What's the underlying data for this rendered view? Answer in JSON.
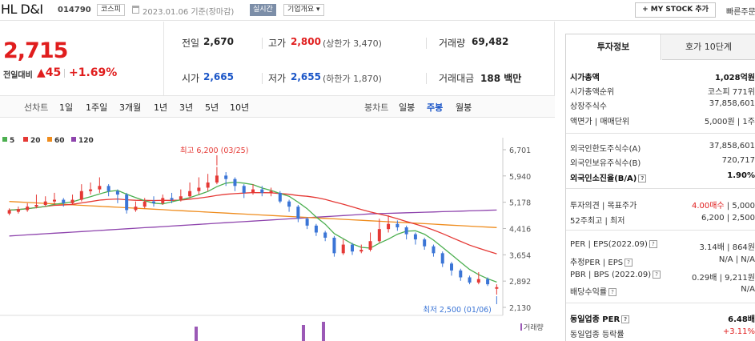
{
  "header": {
    "company_name": "HL D&I",
    "code": "014790",
    "market": "코스피",
    "date_text": "2023.01.06 기준(장마감)",
    "realtime_label": "실시간",
    "overview_label": "기업개요",
    "mystock_label": "+ MY STOCK 추가",
    "quick_label": "빠른주문"
  },
  "price": {
    "current": "2,715",
    "prev_label": "전일대비",
    "change": "▲45",
    "change_pct": "+1.69%"
  },
  "quotes": {
    "prev_close_label": "전일",
    "prev_close": "2,670",
    "open_label": "시가",
    "open": "2,665",
    "high_label": "고가",
    "high": "2,800",
    "upper_limit": "(상한가 3,470)",
    "low_label": "저가",
    "low": "2,655",
    "lower_limit": "(하한가 1,870)",
    "volume_label": "거래량",
    "volume": "69,482",
    "amount_label": "거래대금",
    "amount": "188 백만"
  },
  "tabs": {
    "line_label": "선차트",
    "line_periods": [
      "1일",
      "1주일",
      "3개월",
      "1년",
      "3년",
      "5년",
      "10년"
    ],
    "candle_label": "봉차트",
    "candle_periods": [
      "일봉",
      "주봉",
      "월봉"
    ],
    "active_candle": "주봉"
  },
  "chart_data": {
    "type": "candlestick",
    "legend": [
      {
        "name": "5",
        "color": "#4caf50"
      },
      {
        "name": "20",
        "color": "#e53935"
      },
      {
        "name": "60",
        "color": "#ef8c1d"
      },
      {
        "name": "120",
        "color": "#8e44ad"
      }
    ],
    "y_ticks": [
      "6,701",
      "5,940",
      "5,178",
      "4,416",
      "3,654",
      "2,892",
      "2,130"
    ],
    "ylim": [
      2130,
      6701
    ],
    "high_annotation": "최고 6,200 (03/25)",
    "low_annotation": "최저 2,500 (01/06)",
    "volume_label": "거래량",
    "colors": {
      "up": "#e53935",
      "down": "#3b75d6"
    }
  },
  "invest": {
    "tab_active": "투자정보",
    "tab_other": "호가 10단계",
    "rows": [
      {
        "label": "시가총액",
        "value": "1,028억원",
        "bold": true
      },
      {
        "label": "시가총액순위",
        "value": "코스피 771위"
      },
      {
        "label": "상장주식수",
        "value": "37,858,601"
      },
      {
        "label": "액면가 | 매매단위",
        "value": "5,000원 | 1주"
      },
      {
        "label": "외국인한도주식수(A)",
        "value": "37,858,601"
      },
      {
        "label": "외국인보유주식수(B)",
        "value": "720,717"
      },
      {
        "label": "외국인소진율(B/A)",
        "value": "1.90%",
        "bold": true
      },
      {
        "label": "투자의견 | 목표주가",
        "value_red": "4.00매수",
        "value": "| 5,000"
      },
      {
        "label": "52주최고 | 최저",
        "value": "6,200 | 2,500"
      },
      {
        "label": "PER | EPS(2022.09)",
        "value": "3.14배 | 864원"
      },
      {
        "label": "추정PER | EPS",
        "value": "N/A | N/A"
      },
      {
        "label": "PBR | BPS (2022.09)",
        "value": "0.29배 | 9,211원"
      },
      {
        "label": "배당수익률",
        "value": "N/A"
      },
      {
        "label": "동일업종 PER",
        "value": "6.48배",
        "bold": true
      },
      {
        "label": "동일업종 등락률",
        "value_red": "+3.11%"
      }
    ]
  }
}
